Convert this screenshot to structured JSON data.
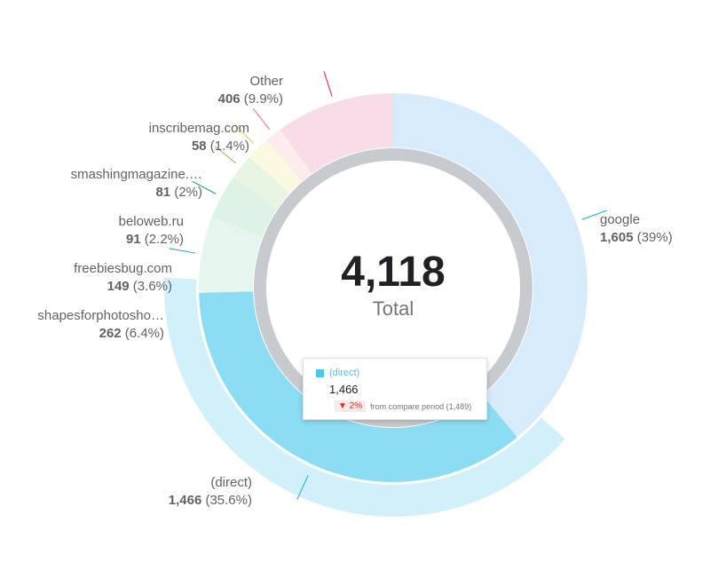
{
  "chart_data": {
    "type": "donut",
    "total": {
      "value": "4,118",
      "label": "Total"
    },
    "slices": [
      {
        "name": "google",
        "value": 1605,
        "value_label": "1,605",
        "percent": "(39%)",
        "color": "#d8ebfb",
        "leader": "#1ea7e6"
      },
      {
        "name": "(direct)",
        "value": 1466,
        "value_label": "1,466",
        "percent": "(35.6%)",
        "color": "#8cddf3",
        "leader": "#1ea7e6",
        "highlighted": true
      },
      {
        "name": "shapesforphotosho…",
        "value": 262,
        "value_label": "262",
        "percent": "(6.4%)",
        "color": "#e5f6ee",
        "leader": "#26a69a"
      },
      {
        "name": "freebiesbug.com",
        "value": 149,
        "value_label": "149",
        "percent": "(3.6%)",
        "color": "#dff2e6",
        "leader": "#0f9d58"
      },
      {
        "name": "beloweb.ru",
        "value": 91,
        "value_label": "91",
        "percent": "(2.2%)",
        "color": "#e9f5e4",
        "leader": "#8bc34a"
      },
      {
        "name": "smashingmagazine.…",
        "value": 81,
        "value_label": "81",
        "percent": "(2%)",
        "color": "#fbf9e0",
        "leader": "#d4c94a"
      },
      {
        "name": "inscribemag.com",
        "value": 58,
        "value_label": "58",
        "percent": "(1.4%)",
        "color": "#fcecec",
        "leader": "#e57373"
      },
      {
        "name": "Other",
        "value": 406,
        "value_label": "406",
        "percent": "(9.9%)",
        "color": "#f7dde8",
        "leader": "#d81b60"
      }
    ],
    "tooltip": {
      "series": "(direct)",
      "value": "1,466",
      "delta": "▼ 2%",
      "compare_text": "from compare period (1,489)"
    }
  }
}
